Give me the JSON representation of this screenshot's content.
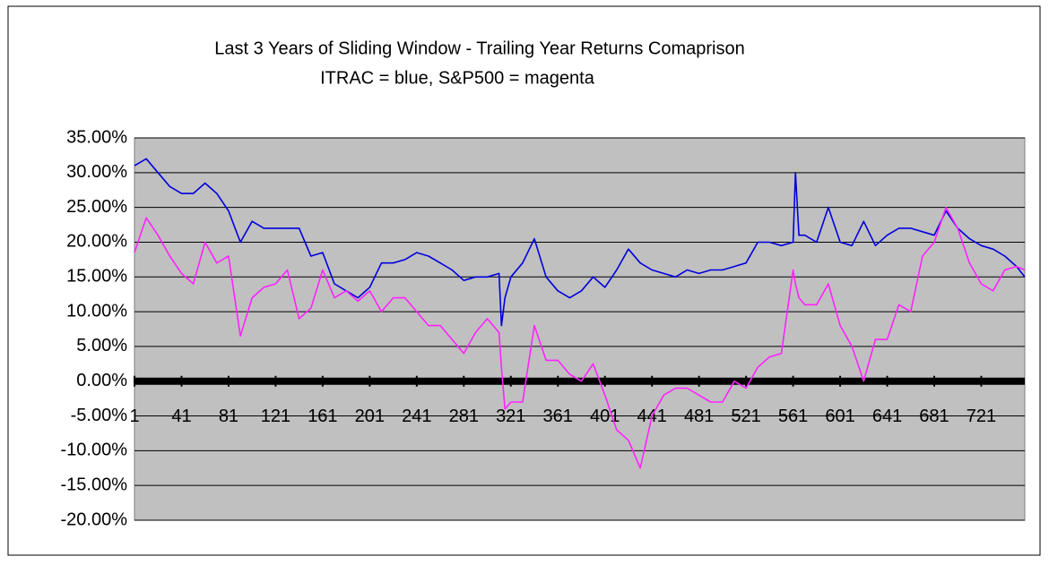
{
  "chart_data": {
    "type": "line",
    "title": "Last 3 Years of Sliding Window - Trailing Year Returns Comaprison",
    "subtitle": "ITRAC = blue, S&P500 = magenta",
    "x": [
      1,
      11,
      21,
      31,
      41,
      51,
      61,
      71,
      81,
      91,
      101,
      111,
      121,
      131,
      141,
      151,
      161,
      171,
      181,
      191,
      201,
      211,
      221,
      231,
      241,
      251,
      261,
      271,
      281,
      291,
      301,
      311,
      313,
      316,
      321,
      331,
      341,
      351,
      361,
      371,
      381,
      391,
      401,
      411,
      421,
      431,
      441,
      451,
      461,
      471,
      481,
      491,
      501,
      511,
      521,
      531,
      541,
      551,
      561,
      563,
      566,
      571,
      581,
      591,
      601,
      611,
      621,
      631,
      641,
      651,
      661,
      671,
      681,
      691,
      701,
      711,
      721,
      731,
      741,
      751,
      758
    ],
    "series": [
      {
        "name": "ITRAC",
        "color": "#0000dd",
        "values": [
          31,
          32,
          30,
          28,
          27,
          27,
          28.5,
          27,
          24.5,
          20,
          23,
          22,
          22,
          22,
          22,
          18,
          18.5,
          14,
          13,
          12,
          13.5,
          17,
          17,
          17.5,
          18.5,
          18,
          17,
          16,
          14.5,
          15,
          15,
          15.5,
          8,
          12,
          15,
          17,
          20.5,
          15,
          13,
          12,
          13,
          15,
          13.5,
          16,
          19,
          17,
          16,
          15.5,
          15,
          16,
          15.5,
          16,
          16,
          16.5,
          17,
          20,
          20,
          19.5,
          20,
          30,
          21,
          21,
          20,
          25,
          20,
          19.5,
          23,
          19.5,
          21,
          22,
          22,
          21.5,
          21,
          24.5,
          22,
          20.5,
          19.5,
          19,
          18,
          16.5,
          15
        ]
      },
      {
        "name": "S&P500",
        "color": "#ff22ff",
        "values": [
          18.5,
          23.5,
          21,
          18,
          15.5,
          14,
          20,
          17,
          18,
          6.5,
          12,
          13.5,
          14,
          16,
          9,
          10.5,
          16,
          12,
          13,
          11.5,
          13,
          10,
          12,
          12,
          10,
          8,
          8,
          6,
          4,
          7,
          9,
          7,
          2,
          -4,
          -3,
          -3,
          8,
          3,
          3,
          1,
          0,
          2.5,
          -2,
          -7,
          -8.5,
          -12.5,
          -5,
          -2,
          -1,
          -1,
          -2,
          -3,
          -3,
          0,
          -1,
          2,
          3.5,
          4,
          16,
          14,
          12,
          11,
          11,
          14,
          8,
          5,
          0,
          6,
          6,
          11,
          10,
          18,
          20,
          25,
          22,
          17,
          14,
          13,
          16,
          16.5,
          16
        ]
      }
    ],
    "xlim": [
      1,
      758
    ],
    "xticks": [
      1,
      41,
      81,
      121,
      161,
      201,
      241,
      281,
      321,
      361,
      401,
      441,
      481,
      521,
      561,
      601,
      641,
      681,
      721
    ],
    "ylim": [
      -20,
      35
    ],
    "yticks": [
      {
        "value": -20,
        "label": "-20.00%"
      },
      {
        "value": -15,
        "label": "-15.00%"
      },
      {
        "value": -10,
        "label": "-10.00%"
      },
      {
        "value": -5,
        "label": "-5.00%"
      },
      {
        "value": 0,
        "label": "0.00%"
      },
      {
        "value": 5,
        "label": "5.00%"
      },
      {
        "value": 10,
        "label": "10.00%"
      },
      {
        "value": 15,
        "label": "15.00%"
      },
      {
        "value": 20,
        "label": "20.00%"
      },
      {
        "value": 25,
        "label": "25.00%"
      },
      {
        "value": 30,
        "label": "30.00%"
      },
      {
        "value": 35,
        "label": "35.00%"
      }
    ],
    "grid": true
  }
}
